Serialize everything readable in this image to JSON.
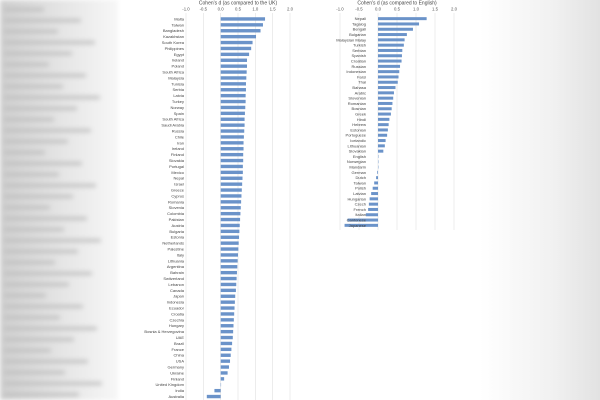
{
  "chart_data": [
    {
      "type": "bar",
      "orientation": "horizontal",
      "title": "Cohen's d (as compared to the UK)",
      "xlim": [
        -1.0,
        2.0
      ],
      "xticks": [
        "-1.0",
        "-0.5",
        "0.0",
        "0.5",
        "1.0",
        "1.5",
        "2.0"
      ],
      "categories": [
        "Malta",
        "Taiwan",
        "Bangladesh",
        "Kazakhstan",
        "South Korea",
        "Philippines",
        "Egypt",
        "Ireland",
        "Poland",
        "South Africa",
        "Malaysia",
        "Tunisia",
        "Serbia",
        "Latvia",
        "Turkey",
        "Norway",
        "Spain",
        "South Africa",
        "Saudi Arabia",
        "Russia",
        "Chile",
        "Iran",
        "Ireland",
        "Finland",
        "Slovakia",
        "Portugal",
        "Mexico",
        "Nepal",
        "Israel",
        "Greece",
        "Cyprus",
        "Romania",
        "Slovenia",
        "Colombia",
        "Pakistan",
        "Austria",
        "Bulgaria",
        "Estonia",
        "Netherlands",
        "Palestine",
        "Italy",
        "Lithuania",
        "Argentina",
        "Bahrain",
        "Switzerland",
        "Lebanon",
        "Canada",
        "Japan",
        "Indonesia",
        "Ecuador",
        "Croatia",
        "Czechia",
        "Hungary",
        "Bosnia & Herzegovina",
        "UAE",
        "Brazil",
        "France",
        "China",
        "USA",
        "Germany",
        "Ukraine",
        "Finland",
        "United Kingdom",
        "India",
        "Australia"
      ],
      "values": [
        1.28,
        1.22,
        1.15,
        1.02,
        0.92,
        0.88,
        0.82,
        0.76,
        0.76,
        0.75,
        0.74,
        0.73,
        0.73,
        0.72,
        0.72,
        0.71,
        0.7,
        0.69,
        0.69,
        0.68,
        0.67,
        0.66,
        0.66,
        0.65,
        0.65,
        0.64,
        0.64,
        0.63,
        0.62,
        0.61,
        0.6,
        0.59,
        0.58,
        0.57,
        0.56,
        0.55,
        0.54,
        0.53,
        0.52,
        0.51,
        0.5,
        0.49,
        0.48,
        0.47,
        0.46,
        0.45,
        0.44,
        0.42,
        0.41,
        0.4,
        0.39,
        0.38,
        0.37,
        0.36,
        0.35,
        0.33,
        0.31,
        0.29,
        0.27,
        0.24,
        0.2,
        0.1,
        0.0,
        -0.18,
        -0.4
      ]
    },
    {
      "type": "bar",
      "orientation": "horizontal",
      "title": "Cohen's d (as compared to English)",
      "xlim": [
        -1.0,
        2.0
      ],
      "xticks": [
        "-1.0",
        "-0.5",
        "0.0",
        "0.5",
        "1.0",
        "1.5",
        "2.0"
      ],
      "categories": [
        "Nepali",
        "Tagalog",
        "Bengali",
        "Bulgarian",
        "Malaysian Malay",
        "Turkish",
        "Serbian",
        "Spanish",
        "Croatian",
        "Russian",
        "Indonesian",
        "Farsi",
        "Thai",
        "Bahasa",
        "Arabic",
        "Slovenian",
        "Romanian",
        "Bosnian",
        "Greek",
        "Hindi",
        "Hebrew",
        "Estonian",
        "Portuguese",
        "Icelandic",
        "Lithuanian",
        "Slovakian",
        "English",
        "Norwegian",
        "Mandarin",
        "German",
        "Dutch",
        "Taiwan",
        "Polish",
        "Latvian",
        "Hungarian",
        "Czech",
        "French",
        "Italian",
        "Cantonese",
        "Japanese"
      ],
      "values": [
        1.28,
        1.08,
        0.92,
        0.76,
        0.7,
        0.68,
        0.64,
        0.63,
        0.62,
        0.58,
        0.56,
        0.54,
        0.52,
        0.46,
        0.42,
        0.4,
        0.38,
        0.36,
        0.34,
        0.3,
        0.28,
        0.26,
        0.24,
        0.2,
        0.18,
        0.14,
        0.0,
        0.0,
        0.0,
        -0.02,
        -0.05,
        -0.1,
        -0.14,
        -0.18,
        -0.22,
        -0.24,
        -0.26,
        -0.32,
        -0.8,
        -0.88
      ]
    }
  ]
}
